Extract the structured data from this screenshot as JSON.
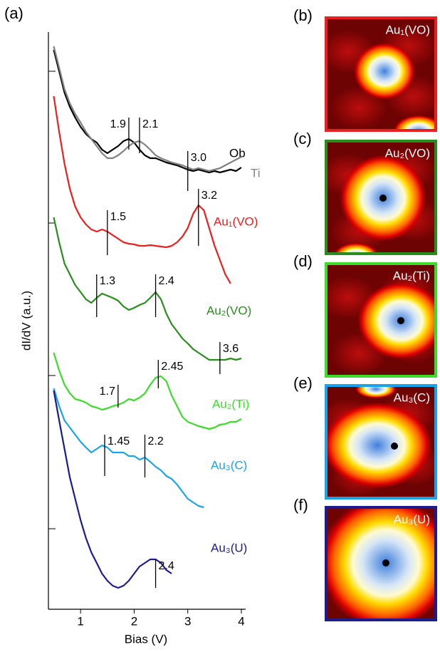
{
  "chart_data": {
    "type": "line",
    "panel": "(a)",
    "xlabel": "Bias (V)",
    "ylabel": "dI/dV (a.u.)",
    "xlim": [
      0.4,
      4.0
    ],
    "xticks": [
      1,
      2,
      3,
      4
    ],
    "ylim": [
      0,
      8.1
    ],
    "yticks": [
      1.13,
      3.28,
      5.42,
      7.55
    ],
    "x": [
      0.5,
      0.6,
      0.7,
      0.8,
      0.9,
      1.0,
      1.1,
      1.2,
      1.3,
      1.4,
      1.5,
      1.6,
      1.7,
      1.8,
      1.9,
      2.0,
      2.1,
      2.2,
      2.3,
      2.4,
      2.5,
      2.6,
      2.7,
      2.8,
      2.9,
      3.0,
      3.1,
      3.2,
      3.3,
      3.4,
      3.5,
      3.6,
      3.7,
      3.8,
      3.9,
      4.0
    ],
    "series": [
      {
        "name": "Ob",
        "color": "#000000",
        "values": [
          7.85,
          7.55,
          7.25,
          7.05,
          6.9,
          6.77,
          6.67,
          6.6,
          6.55,
          6.45,
          6.4,
          6.45,
          6.5,
          6.57,
          6.6,
          6.55,
          6.45,
          6.37,
          6.33,
          6.33,
          6.3,
          6.27,
          6.25,
          6.23,
          6.2,
          6.17,
          6.15,
          6.17,
          6.15,
          6.13,
          6.15,
          6.13,
          6.15,
          6.17,
          6.15,
          6.2
        ]
      },
      {
        "name": "Ti",
        "color": "#808080",
        "values": [
          7.9,
          7.6,
          7.3,
          7.1,
          6.95,
          6.83,
          6.7,
          6.6,
          6.5,
          6.4,
          6.33,
          6.33,
          6.37,
          6.43,
          6.5,
          6.55,
          6.57,
          6.52,
          6.45,
          6.37,
          6.33,
          6.3,
          6.27,
          6.25,
          6.23,
          6.2,
          6.17,
          6.19,
          6.17,
          6.15,
          6.17,
          6.19,
          6.23,
          6.27,
          6.31,
          6.35
        ]
      },
      {
        "name": "Au₁(VO)",
        "color": "#e8201f",
        "values": [
          7.2,
          6.7,
          6.25,
          5.9,
          5.65,
          5.5,
          5.4,
          5.33,
          5.3,
          5.33,
          5.3,
          5.25,
          5.2,
          5.15,
          5.13,
          5.12,
          5.1,
          5.1,
          5.11,
          5.1,
          5.09,
          5.08,
          5.1,
          5.15,
          5.23,
          5.35,
          5.55,
          5.67,
          5.6,
          5.35,
          5.1,
          4.9,
          4.7,
          4.57,
          null,
          null
        ]
      },
      {
        "name": "Au₂(VO)",
        "color": "#2a8c1e",
        "values": [
          5.5,
          5.15,
          4.85,
          4.7,
          4.55,
          4.45,
          4.35,
          4.3,
          4.37,
          4.43,
          4.4,
          4.37,
          4.33,
          4.25,
          4.2,
          4.23,
          4.27,
          4.3,
          4.37,
          4.45,
          4.35,
          4.15,
          4.0,
          3.9,
          3.8,
          3.73,
          3.65,
          3.6,
          3.55,
          3.5,
          3.5,
          3.5,
          3.5,
          3.52,
          3.5,
          3.52
        ]
      },
      {
        "name": "Au₂(Ti)",
        "color": "#3ddc2c",
        "values": [
          3.6,
          3.35,
          3.15,
          3.03,
          2.95,
          2.93,
          2.9,
          2.85,
          2.83,
          2.8,
          2.82,
          2.85,
          2.87,
          2.9,
          2.95,
          2.93,
          2.97,
          3.03,
          3.15,
          3.25,
          3.27,
          3.2,
          3.0,
          2.85,
          2.7,
          2.63,
          2.6,
          2.57,
          2.55,
          2.53,
          2.55,
          2.59,
          2.6,
          2.63,
          2.63,
          2.67
        ]
      },
      {
        "name": "Au₃(C)",
        "color": "#1aa3e8",
        "values": [
          3.1,
          2.85,
          2.65,
          2.55,
          2.45,
          2.35,
          2.27,
          2.2,
          2.25,
          2.3,
          2.27,
          2.2,
          2.2,
          2.2,
          2.15,
          2.15,
          2.1,
          2.13,
          2.07,
          2.0,
          1.95,
          1.87,
          1.83,
          1.75,
          1.65,
          1.55,
          1.5,
          1.45,
          1.43,
          null,
          null,
          null,
          null,
          null,
          null,
          null
        ]
      },
      {
        "name": "Au₃(U)",
        "color": "#1c1c8c",
        "values": [
          3.07,
          2.65,
          2.25,
          1.85,
          1.55,
          1.25,
          1.0,
          0.8,
          0.65,
          0.5,
          0.4,
          0.33,
          0.3,
          0.33,
          0.4,
          0.5,
          0.6,
          0.65,
          0.7,
          0.7,
          0.65,
          0.55,
          0.5,
          null,
          null,
          null,
          null,
          null,
          null,
          null,
          null,
          null,
          null,
          null,
          null,
          null
        ]
      }
    ],
    "annotations": [
      {
        "label": "1.9",
        "x": 1.9,
        "y": [
          6.9,
          6.45
        ]
      },
      {
        "label": "2.1",
        "x": 2.1,
        "y": [
          6.9,
          6.4
        ]
      },
      {
        "label": "3.0",
        "x": 3.0,
        "y": [
          6.43,
          5.87
        ]
      },
      {
        "label": "3.2",
        "x": 3.2,
        "y": [
          5.9,
          5.1
        ]
      },
      {
        "label": "1.5",
        "x": 1.5,
        "y": [
          5.6,
          4.97
        ]
      },
      {
        "label": "1.3",
        "x": 1.3,
        "y": [
          4.7,
          4.1
        ]
      },
      {
        "label": "2.4",
        "x": 2.4,
        "y": [
          4.7,
          4.1
        ]
      },
      {
        "label": "3.6",
        "x": 3.6,
        "y": [
          3.75,
          3.3
        ]
      },
      {
        "label": "1.7",
        "x": 1.7,
        "y": [
          3.15,
          2.83
        ]
      },
      {
        "label": "2.45",
        "x": 2.45,
        "y": [
          3.5,
          3.1
        ]
      },
      {
        "label": "1.45",
        "x": 1.45,
        "y": [
          2.45,
          1.87
        ]
      },
      {
        "label": "2.2",
        "x": 2.2,
        "y": [
          2.45,
          1.85
        ]
      },
      {
        "label": "2.4",
        "x": 2.4,
        "y": [
          0.7,
          0.3
        ]
      }
    ]
  },
  "images": [
    {
      "panel": "(b)",
      "label": "Au₁(VO)",
      "border": "#e8201f"
    },
    {
      "panel": "(c)",
      "label": "Au₂(VO)",
      "border": "#2a8c1e"
    },
    {
      "panel": "(d)",
      "label": "Au₂(Ti)",
      "border": "#3ddc2c"
    },
    {
      "panel": "(e)",
      "label": "Au₃(C)",
      "border": "#1aa3e8"
    },
    {
      "panel": "(f)",
      "label": "Au₃(U)",
      "border": "#1c1c8c"
    }
  ]
}
